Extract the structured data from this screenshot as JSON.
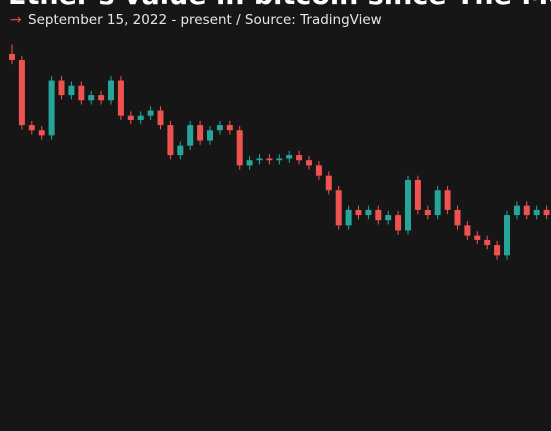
{
  "chart_data": {
    "type": "candlestick",
    "title": "Ether's value in bitcoin since The Merge",
    "subtitle_marker": "→",
    "subtitle": "September 15, 2022 - present / Source: TradingView",
    "up_color": "#26a69a",
    "down_color": "#ef5350",
    "ylim": [
      0.033,
      0.0833
    ],
    "open": [
      0.077,
      0.0763,
      0.0687,
      0.0681,
      0.0675,
      0.0739,
      0.0722,
      0.0733,
      0.0716,
      0.0722,
      0.0716,
      0.0739,
      0.0698,
      0.0693,
      0.0698,
      0.0704,
      0.0687,
      0.0652,
      0.0663,
      0.0687,
      0.0669,
      0.0681,
      0.0687,
      0.0681,
      0.064,
      0.0646,
      0.0648,
      0.0646,
      0.0648,
      0.0652,
      0.0646,
      0.064,
      0.0628,
      0.0611,
      0.057,
      0.0588,
      0.0582,
      0.0588,
      0.0576,
      0.0582,
      0.0564,
      0.0623,
      0.0588,
      0.0582,
      0.0611,
      0.0588,
      0.057,
      0.0558,
      0.0553,
      0.0547,
      0.0535,
      0.0582,
      0.0593,
      0.0582,
      0.0588
    ],
    "high": [
      0.0781,
      0.0768,
      0.0692,
      0.0686,
      0.0744,
      0.0744,
      0.0738,
      0.0738,
      0.0727,
      0.0727,
      0.0744,
      0.0744,
      0.0703,
      0.0703,
      0.0709,
      0.0709,
      0.0692,
      0.0668,
      0.0692,
      0.0692,
      0.0686,
      0.0692,
      0.0692,
      0.0686,
      0.0651,
      0.0653,
      0.0653,
      0.0653,
      0.0657,
      0.0657,
      0.0651,
      0.0645,
      0.0633,
      0.0616,
      0.0593,
      0.0593,
      0.0593,
      0.0593,
      0.0587,
      0.0587,
      0.0628,
      0.0628,
      0.0593,
      0.0616,
      0.0616,
      0.0593,
      0.0575,
      0.0563,
      0.0558,
      0.0552,
      0.0587,
      0.0598,
      0.0598,
      0.0593,
      0.0593
    ],
    "low": [
      0.0758,
      0.0682,
      0.0676,
      0.067,
      0.067,
      0.0717,
      0.0717,
      0.0711,
      0.0711,
      0.0711,
      0.0711,
      0.0693,
      0.0688,
      0.0688,
      0.0693,
      0.0682,
      0.0647,
      0.0647,
      0.0658,
      0.0664,
      0.0664,
      0.0676,
      0.0676,
      0.0635,
      0.0635,
      0.0641,
      0.0641,
      0.0641,
      0.0643,
      0.0641,
      0.0635,
      0.0623,
      0.0606,
      0.0565,
      0.0565,
      0.0577,
      0.0577,
      0.0571,
      0.0571,
      0.0559,
      0.0559,
      0.0583,
      0.0577,
      0.0577,
      0.0583,
      0.0565,
      0.0553,
      0.0548,
      0.0542,
      0.053,
      0.053,
      0.0577,
      0.0577,
      0.0577,
      0.0577
    ],
    "close": [
      0.0763,
      0.0687,
      0.0681,
      0.0675,
      0.0739,
      0.0722,
      0.0733,
      0.0716,
      0.0722,
      0.0716,
      0.0739,
      0.0698,
      0.0693,
      0.0698,
      0.0704,
      0.0687,
      0.0652,
      0.0663,
      0.0687,
      0.0669,
      0.0681,
      0.0687,
      0.0681,
      0.064,
      0.0646,
      0.0648,
      0.0646,
      0.0648,
      0.0652,
      0.0646,
      0.064,
      0.0628,
      0.0611,
      0.057,
      0.0588,
      0.0582,
      0.0588,
      0.0576,
      0.0582,
      0.0564,
      0.0623,
      0.0588,
      0.0582,
      0.0611,
      0.0588,
      0.057,
      0.0558,
      0.0553,
      0.0547,
      0.0535,
      0.0582,
      0.0593,
      0.0582,
      0.0588,
      0.0582
    ]
  }
}
